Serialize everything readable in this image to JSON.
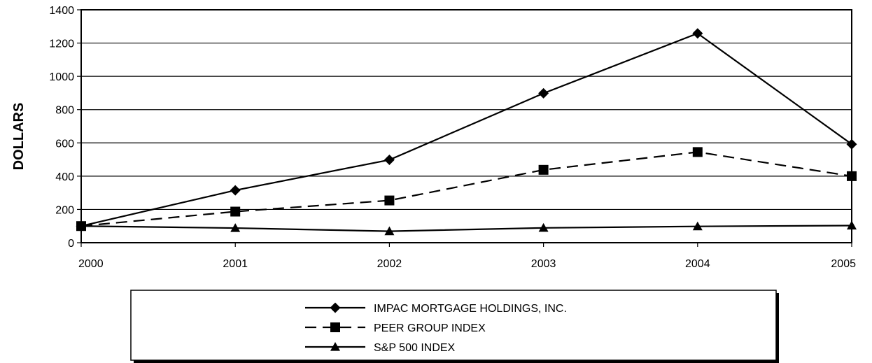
{
  "chart_data": {
    "type": "line",
    "x": [
      "2000",
      "2001",
      "2002",
      "2003",
      "2004",
      "2005"
    ],
    "ylabel": "DOLLARS",
    "ylim": [
      0,
      1400
    ],
    "yticks": [
      0,
      200,
      400,
      600,
      800,
      1000,
      1200,
      1400
    ],
    "grid": true,
    "legend_position": "bottom",
    "series": [
      {
        "name": "IMPAC MORTGAGE HOLDINGS, INC.",
        "marker": "diamond",
        "line_style": "solid",
        "values": [
          100,
          315,
          498,
          898,
          1258,
          592
        ]
      },
      {
        "name": "PEER GROUP INDEX",
        "marker": "square",
        "line_style": "dashed",
        "values": [
          100,
          187,
          254,
          438,
          545,
          400
        ]
      },
      {
        "name": "S&P 500 INDEX",
        "marker": "triangle",
        "line_style": "solid",
        "values": [
          100,
          88,
          69,
          89,
          98,
          103
        ]
      }
    ]
  }
}
